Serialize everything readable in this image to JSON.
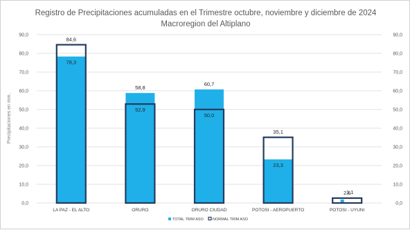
{
  "chart_data": {
    "type": "bar",
    "title_lines": [
      "Registro de Precipitaciones acumuladas en el Trimestre  octubre, noviembre y diciembre de 2024",
      "Macroregion del Altiplano"
    ],
    "ylabel": "Precipitaciones en mm.",
    "ylim": [
      0,
      90
    ],
    "yticks": [
      "0,0",
      "10,0",
      "20,0",
      "30,0",
      "40,0",
      "50,0",
      "60,0",
      "70,0",
      "80,0",
      "90,0"
    ],
    "secondary_axis": true,
    "grid": true,
    "categories": [
      "LA PAZ - EL ALTO",
      "ORURO",
      "ORURO CIUDAD",
      "POTOSI - AEROPUERTO",
      "POTOSI - UYUNI"
    ],
    "series": [
      {
        "name": "TOTAL TRIM ASO",
        "style": "filled",
        "color": "#1fb0ea",
        "values": [
          78.3,
          58.8,
          60.7,
          23.3,
          1.1
        ],
        "labels": [
          "78,3",
          "58,8",
          "60,7",
          "23,3",
          "1,1"
        ]
      },
      {
        "name": "NORMAL TRIM ASO",
        "style": "outline",
        "color": "#243a5e",
        "values": [
          84.6,
          52.9,
          50.0,
          35.1,
          2.6
        ],
        "labels": [
          "84,6",
          "52,9",
          "50,0",
          "35,1",
          "2,6"
        ]
      }
    ],
    "legend_position": "bottom"
  }
}
